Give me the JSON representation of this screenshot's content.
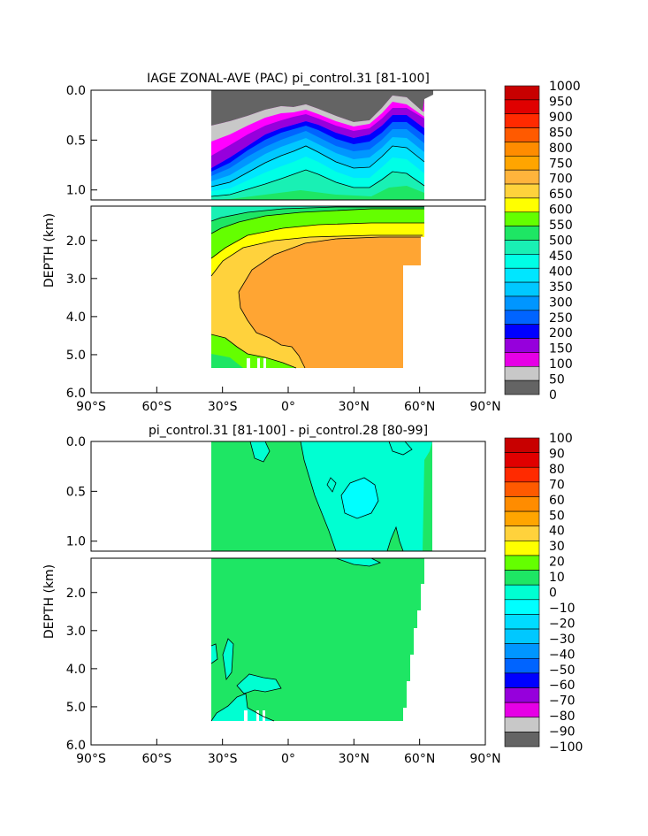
{
  "chart_data": [
    {
      "type": "heatmap",
      "title": "IAGE ZONAL-AVE (PAC) pi_control.31 [81-100]",
      "ylabel": "DEPTH (km)",
      "x_ticks": [
        "90°S",
        "60°S",
        "30°S",
        "0°",
        "30°N",
        "60°N",
        "90°N"
      ],
      "y_ticks_upper": [
        "0.0",
        "0.5",
        "1.0"
      ],
      "y_ticks_lower": [
        "2.0",
        "3.0",
        "4.0",
        "5.0",
        "6.0"
      ],
      "xlim": [
        -90,
        90
      ],
      "ylim_km": [
        0,
        6
      ],
      "colorbar_labels": [
        "1000",
        "950",
        "900",
        "850",
        "800",
        "750",
        "700",
        "650",
        "600",
        "550",
        "500",
        "450",
        "400",
        "350",
        "300",
        "250",
        "200",
        "150",
        "100",
        "50",
        "0"
      ],
      "colorbar_colors": [
        "#c80000",
        "#e00000",
        "#ff2a00",
        "#ff5a00",
        "#ff8c00",
        "#ffa500",
        "#ffb43c",
        "#ffd23c",
        "#ffff00",
        "#64ff00",
        "#1ee664",
        "#19f0b4",
        "#00ffe6",
        "#00e6ff",
        "#00c8ff",
        "#0096ff",
        "#0064ff",
        "#0000ff",
        "#9600dc",
        "#e600e6",
        "#c8c8c8",
        "#646464"
      ],
      "dominant_value_range": "750-800",
      "dominant_color": "#ffa533"
    },
    {
      "type": "heatmap",
      "title": "pi_control.31 [81-100] - pi_control.28 [80-99]",
      "ylabel": "DEPTH (km)",
      "x_ticks": [
        "90°S",
        "60°S",
        "30°S",
        "0°",
        "30°N",
        "60°N",
        "90°N"
      ],
      "y_ticks_upper": [
        "0.0",
        "0.5",
        "1.0"
      ],
      "y_ticks_lower": [
        "2.0",
        "3.0",
        "4.0",
        "5.0",
        "6.0"
      ],
      "xlim": [
        -90,
        90
      ],
      "ylim_km": [
        0,
        6
      ],
      "colorbar_labels": [
        "100",
        "90",
        "80",
        "70",
        "60",
        "50",
        "40",
        "30",
        "20",
        "10",
        "0",
        "−10",
        "−20",
        "−30",
        "−40",
        "−50",
        "−60",
        "−70",
        "−80",
        "−90",
        "−100"
      ],
      "colorbar_colors": [
        "#c80000",
        "#e00000",
        "#ff2a00",
        "#ff5a00",
        "#ff8c00",
        "#ffa500",
        "#ffd23c",
        "#ffff00",
        "#64ff00",
        "#1ee664",
        "#00ffd2",
        "#00ffff",
        "#00dcff",
        "#00c8ff",
        "#0096ff",
        "#0064ff",
        "#0000ff",
        "#9600dc",
        "#e600e6",
        "#c8c8c8",
        "#646464"
      ],
      "dominant_value_range": "0-10",
      "dominant_color": "#1ee664"
    }
  ]
}
